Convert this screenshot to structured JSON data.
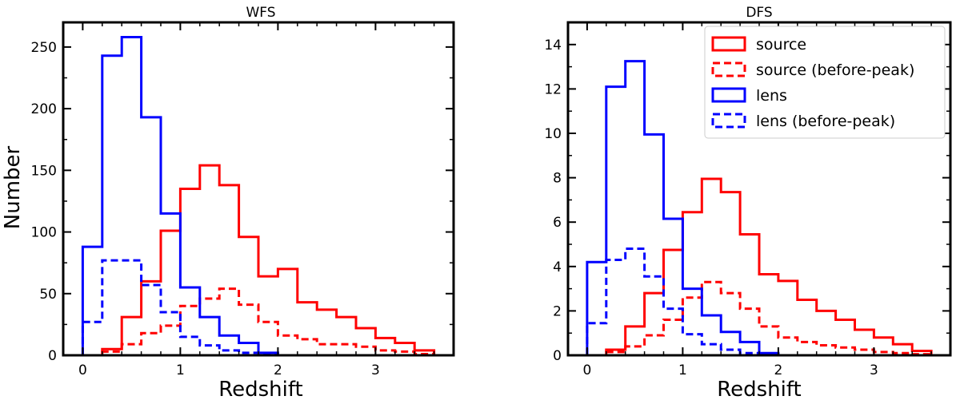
{
  "chart_data": [
    {
      "type": "histogram",
      "title": "WFS",
      "xlabel": "Redshift",
      "ylabel": "Number",
      "xlim": [
        -0.2,
        3.8
      ],
      "ylim": [
        0,
        270
      ],
      "xticks": [
        0,
        1,
        2,
        3
      ],
      "yticks": [
        0,
        50,
        100,
        150,
        200,
        250
      ],
      "xtick_labels": [
        "0",
        "1",
        "2",
        "3"
      ],
      "ytick_labels": [
        "0",
        "50",
        "100",
        "150",
        "200",
        "250"
      ],
      "bin_edges": [
        0.0,
        0.2,
        0.4,
        0.6,
        0.8,
        1.0,
        1.2,
        1.4,
        1.6,
        1.8,
        2.0,
        2.2,
        2.4,
        2.6,
        2.8,
        3.0,
        3.2,
        3.4,
        3.6
      ],
      "series": [
        {
          "name": "source",
          "color": "#ff0000",
          "style": "solid",
          "values": [
            0,
            5,
            31,
            60,
            101,
            135,
            154,
            138,
            96,
            64,
            70,
            43,
            37,
            31,
            22,
            14,
            10,
            4
          ]
        },
        {
          "name": "source (before-peak)",
          "color": "#ff0000",
          "style": "dashed",
          "values": [
            0,
            3,
            9,
            18,
            24,
            40,
            46,
            54,
            41,
            27,
            16,
            13,
            9,
            9,
            7,
            4,
            3,
            1
          ]
        },
        {
          "name": "lens",
          "color": "#0000ff",
          "style": "solid",
          "values": [
            88,
            243,
            258,
            193,
            115,
            55,
            31,
            16,
            10,
            2,
            0,
            0,
            0,
            0,
            0,
            0,
            0,
            0
          ]
        },
        {
          "name": "lens (before-peak)",
          "color": "#0000ff",
          "style": "dashed",
          "values": [
            27,
            77,
            77,
            57,
            35,
            15,
            8,
            4,
            2,
            1,
            0,
            0,
            0,
            0,
            0,
            0,
            0,
            0
          ]
        }
      ],
      "legend": false
    },
    {
      "type": "histogram",
      "title": "DFS",
      "xlabel": "Redshift",
      "ylabel": "",
      "xlim": [
        -0.2,
        3.8
      ],
      "ylim": [
        0,
        15
      ],
      "xticks": [
        0,
        1,
        2,
        3
      ],
      "yticks": [
        0,
        2,
        4,
        6,
        8,
        10,
        12,
        14
      ],
      "xtick_labels": [
        "0",
        "1",
        "2",
        "3"
      ],
      "ytick_labels": [
        "0",
        "2",
        "4",
        "6",
        "8",
        "10",
        "12",
        "14"
      ],
      "bin_edges": [
        0.0,
        0.2,
        0.4,
        0.6,
        0.8,
        1.0,
        1.2,
        1.4,
        1.6,
        1.8,
        2.0,
        2.2,
        2.4,
        2.6,
        2.8,
        3.0,
        3.2,
        3.4,
        3.6
      ],
      "series": [
        {
          "name": "source",
          "color": "#ff0000",
          "style": "solid",
          "values": [
            0,
            0.25,
            1.3,
            2.8,
            4.75,
            6.45,
            7.95,
            7.35,
            5.45,
            3.65,
            3.35,
            2.5,
            2.0,
            1.6,
            1.15,
            0.8,
            0.5,
            0.2
          ]
        },
        {
          "name": "source (before-peak)",
          "color": "#ff0000",
          "style": "dashed",
          "values": [
            0,
            0.15,
            0.4,
            0.9,
            1.6,
            2.6,
            3.3,
            2.8,
            2.1,
            1.3,
            0.8,
            0.6,
            0.45,
            0.35,
            0.25,
            0.15,
            0.1,
            0.05
          ]
        },
        {
          "name": "lens",
          "color": "#0000ff",
          "style": "solid",
          "values": [
            4.2,
            12.1,
            13.25,
            9.95,
            6.15,
            3.0,
            1.8,
            1.05,
            0.6,
            0.1,
            0,
            0,
            0,
            0,
            0,
            0,
            0,
            0
          ]
        },
        {
          "name": "lens (before-peak)",
          "color": "#0000ff",
          "style": "dashed",
          "values": [
            1.45,
            4.3,
            4.8,
            3.55,
            2.1,
            0.95,
            0.5,
            0.25,
            0.1,
            0.05,
            0,
            0,
            0,
            0,
            0,
            0,
            0,
            0
          ]
        }
      ],
      "legend": true,
      "legend_position": "top-right"
    }
  ]
}
